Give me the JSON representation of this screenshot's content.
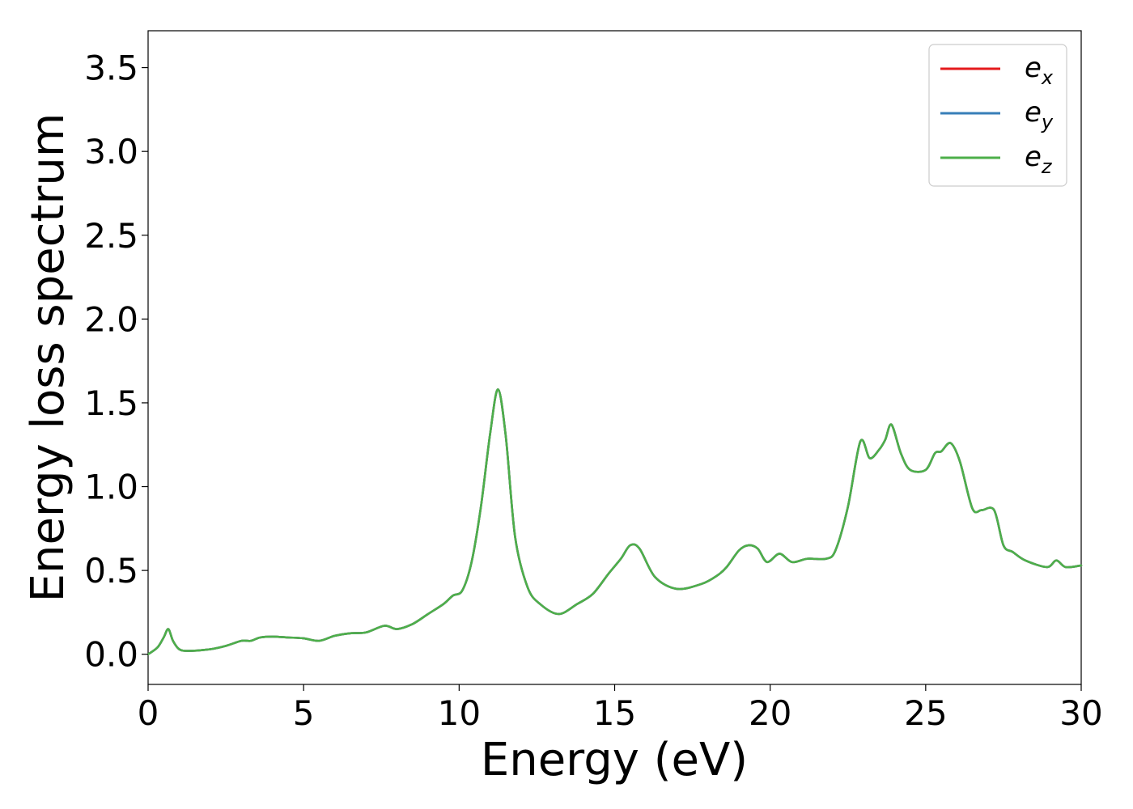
{
  "chart_data": {
    "type": "line",
    "xlabel": "Energy (eV)",
    "ylabel": "Energy loss spectrum",
    "xlim": [
      0,
      30
    ],
    "ylim": [
      -0.18,
      3.72
    ],
    "xticks": [
      0,
      5,
      10,
      15,
      20,
      25,
      30
    ],
    "yticks": [
      0.0,
      0.5,
      1.0,
      1.5,
      2.0,
      2.5,
      3.0,
      3.5
    ],
    "xtick_labels": [
      "0",
      "5",
      "10",
      "15",
      "20",
      "25",
      "30"
    ],
    "ytick_labels": [
      "0.0",
      "0.5",
      "1.0",
      "1.5",
      "2.0",
      "2.5",
      "3.0",
      "3.5"
    ],
    "legend_position": "top-right",
    "grid": false,
    "x": [
      0,
      0.3,
      0.5,
      0.65,
      0.8,
      1.0,
      1.3,
      2.0,
      2.5,
      3.0,
      3.3,
      3.6,
      4.0,
      4.5,
      5.0,
      5.5,
      6.0,
      6.5,
      7.0,
      7.6,
      8.0,
      8.5,
      9.0,
      9.5,
      9.8,
      10.1,
      10.4,
      10.7,
      11.0,
      11.25,
      11.5,
      11.8,
      12.2,
      12.6,
      13.2,
      13.8,
      14.3,
      14.8,
      15.2,
      15.5,
      15.8,
      16.3,
      17.0,
      17.8,
      18.3,
      18.6,
      19.0,
      19.3,
      19.6,
      19.9,
      20.3,
      20.7,
      21.2,
      21.8,
      22.1,
      22.5,
      22.9,
      23.2,
      23.5,
      23.7,
      23.9,
      24.2,
      24.5,
      25.0,
      25.3,
      25.5,
      25.8,
      26.1,
      26.5,
      26.8,
      27.2,
      27.5,
      27.8,
      28.2,
      28.9,
      29.2,
      29.5,
      30.0
    ],
    "series": [
      {
        "name": "e_x",
        "color": "#e41a1c",
        "values": [
          0.0,
          0.04,
          0.1,
          0.15,
          0.08,
          0.03,
          0.02,
          0.03,
          0.05,
          0.08,
          0.08,
          0.1,
          0.105,
          0.1,
          0.095,
          0.08,
          0.11,
          0.125,
          0.13,
          0.17,
          0.15,
          0.18,
          0.24,
          0.3,
          0.35,
          0.38,
          0.55,
          0.88,
          1.32,
          1.58,
          1.3,
          0.7,
          0.4,
          0.3,
          0.24,
          0.3,
          0.36,
          0.48,
          0.57,
          0.65,
          0.63,
          0.46,
          0.39,
          0.42,
          0.47,
          0.52,
          0.62,
          0.65,
          0.63,
          0.55,
          0.6,
          0.55,
          0.57,
          0.57,
          0.62,
          0.88,
          1.27,
          1.17,
          1.22,
          1.28,
          1.37,
          1.2,
          1.1,
          1.1,
          1.2,
          1.21,
          1.26,
          1.15,
          0.87,
          0.86,
          0.86,
          0.65,
          0.61,
          0.56,
          0.52,
          0.56,
          0.52,
          0.53
        ]
      },
      {
        "name": "e_y",
        "color": "#377eb8",
        "values": [
          0.0,
          0.04,
          0.1,
          0.15,
          0.08,
          0.03,
          0.02,
          0.03,
          0.05,
          0.08,
          0.08,
          0.1,
          0.105,
          0.1,
          0.095,
          0.08,
          0.11,
          0.125,
          0.13,
          0.17,
          0.15,
          0.18,
          0.24,
          0.3,
          0.35,
          0.38,
          0.55,
          0.88,
          1.32,
          1.58,
          1.3,
          0.7,
          0.4,
          0.3,
          0.24,
          0.3,
          0.36,
          0.48,
          0.57,
          0.65,
          0.63,
          0.46,
          0.39,
          0.42,
          0.47,
          0.52,
          0.62,
          0.65,
          0.63,
          0.55,
          0.6,
          0.55,
          0.57,
          0.57,
          0.62,
          0.88,
          1.27,
          1.17,
          1.22,
          1.28,
          1.37,
          1.2,
          1.1,
          1.1,
          1.2,
          1.21,
          1.26,
          1.15,
          0.87,
          0.86,
          0.86,
          0.65,
          0.61,
          0.56,
          0.52,
          0.56,
          0.52,
          0.53
        ]
      },
      {
        "name": "e_z",
        "color": "#4daf4a",
        "values": [
          0.0,
          0.04,
          0.1,
          0.15,
          0.08,
          0.03,
          0.02,
          0.03,
          0.05,
          0.08,
          0.08,
          0.1,
          0.105,
          0.1,
          0.095,
          0.08,
          0.11,
          0.125,
          0.13,
          0.17,
          0.15,
          0.18,
          0.24,
          0.3,
          0.35,
          0.38,
          0.55,
          0.88,
          1.32,
          1.58,
          1.3,
          0.7,
          0.4,
          0.3,
          0.24,
          0.3,
          0.36,
          0.48,
          0.57,
          0.65,
          0.63,
          0.46,
          0.39,
          0.42,
          0.47,
          0.52,
          0.62,
          0.65,
          0.63,
          0.55,
          0.6,
          0.55,
          0.57,
          0.57,
          0.62,
          0.88,
          1.27,
          1.17,
          1.22,
          1.28,
          1.37,
          1.2,
          1.1,
          1.1,
          1.2,
          1.21,
          1.26,
          1.15,
          0.87,
          0.86,
          0.86,
          0.65,
          0.61,
          0.56,
          0.52,
          0.56,
          0.52,
          0.53
        ]
      }
    ],
    "legend": [
      {
        "base": "e",
        "sub": "x",
        "color": "#e41a1c"
      },
      {
        "base": "e",
        "sub": "y",
        "color": "#377eb8"
      },
      {
        "base": "e",
        "sub": "z",
        "color": "#4daf4a"
      }
    ]
  }
}
